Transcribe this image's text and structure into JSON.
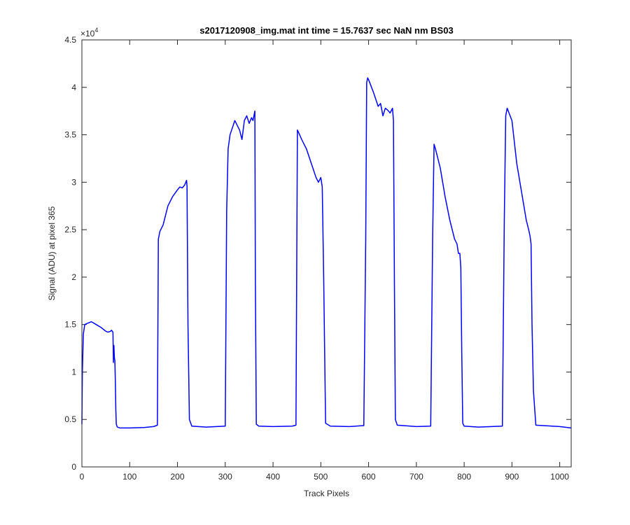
{
  "chart_data": {
    "type": "line",
    "title": "s2017120908_img.mat int time = 15.7637 sec  NaN nm BS03",
    "xlabel": "Track Pixels",
    "ylabel": "Signal (ADU) at pixel 365",
    "xlim": [
      0,
      1024
    ],
    "ylim": [
      0,
      45000
    ],
    "x_ticks": [
      0,
      100,
      200,
      300,
      400,
      500,
      600,
      700,
      800,
      900,
      1000
    ],
    "y_ticks": [
      0,
      5000,
      10000,
      15000,
      20000,
      25000,
      30000,
      35000,
      40000,
      45000
    ],
    "y_tick_labels": [
      "0",
      "0.5",
      "1",
      "1.5",
      "2",
      "2.5",
      "3",
      "3.5",
      "4",
      "4.5"
    ],
    "y_exponent_base": "×10",
    "y_exponent_power": "4",
    "grid": false,
    "line_color": "#0000ff",
    "series": [
      {
        "x": [
          0,
          1,
          3,
          6,
          10,
          20,
          30,
          40,
          50,
          55,
          60,
          62,
          65,
          66,
          67,
          68,
          69,
          70,
          71,
          72,
          74,
          80,
          100,
          130,
          150,
          158,
          160,
          162,
          163,
          170,
          180,
          190,
          200,
          205,
          210,
          215,
          219,
          220,
          222,
          225,
          230,
          260,
          300,
          303,
          306,
          310,
          320,
          330,
          335,
          340,
          345,
          350,
          355,
          358,
          362,
          363,
          365,
          370,
          400,
          440,
          448,
          451,
          453,
          460,
          470,
          480,
          490,
          495,
          500,
          503,
          506,
          510,
          520,
          560,
          590,
          594,
          596,
          598,
          600,
          610,
          620,
          625,
          630,
          635,
          640,
          645,
          650,
          652,
          654,
          656,
          660,
          700,
          730,
          734,
          737,
          740,
          750,
          760,
          770,
          780,
          785,
          788,
          791,
          793,
          795,
          797,
          800,
          830,
          880,
          884,
          887,
          890,
          900,
          910,
          920,
          930,
          935,
          938,
          940,
          942,
          945,
          950,
          1000,
          1024
        ],
        "y": [
          4500,
          10000,
          14000,
          15000,
          15100,
          15300,
          15000,
          14700,
          14300,
          14200,
          14300,
          14400,
          14200,
          11000,
          12800,
          11500,
          11200,
          9000,
          6000,
          4500,
          4200,
          4100,
          4100,
          4150,
          4250,
          4400,
          24000,
          24500,
          24800,
          25500,
          27500,
          28500,
          29200,
          29500,
          29400,
          29700,
          30200,
          29600,
          15000,
          5000,
          4300,
          4200,
          4300,
          27000,
          33500,
          35000,
          36500,
          35500,
          34500,
          36500,
          37000,
          36200,
          36800,
          36500,
          37500,
          20000,
          4500,
          4300,
          4250,
          4300,
          4400,
          35500,
          35300,
          34500,
          33500,
          32000,
          30500,
          30000,
          30500,
          29500,
          20000,
          4600,
          4300,
          4250,
          4350,
          24000,
          40500,
          41000,
          40800,
          39500,
          38000,
          38300,
          37000,
          37800,
          37600,
          37300,
          37800,
          36500,
          20000,
          5000,
          4400,
          4250,
          4300,
          24000,
          34000,
          33500,
          31500,
          28500,
          26000,
          24000,
          23500,
          22500,
          22500,
          21000,
          12000,
          4600,
          4300,
          4200,
          4300,
          26000,
          37000,
          37800,
          36500,
          32000,
          29000,
          26000,
          25000,
          24300,
          23500,
          15000,
          8000,
          4400,
          4250,
          4100
        ]
      }
    ]
  }
}
